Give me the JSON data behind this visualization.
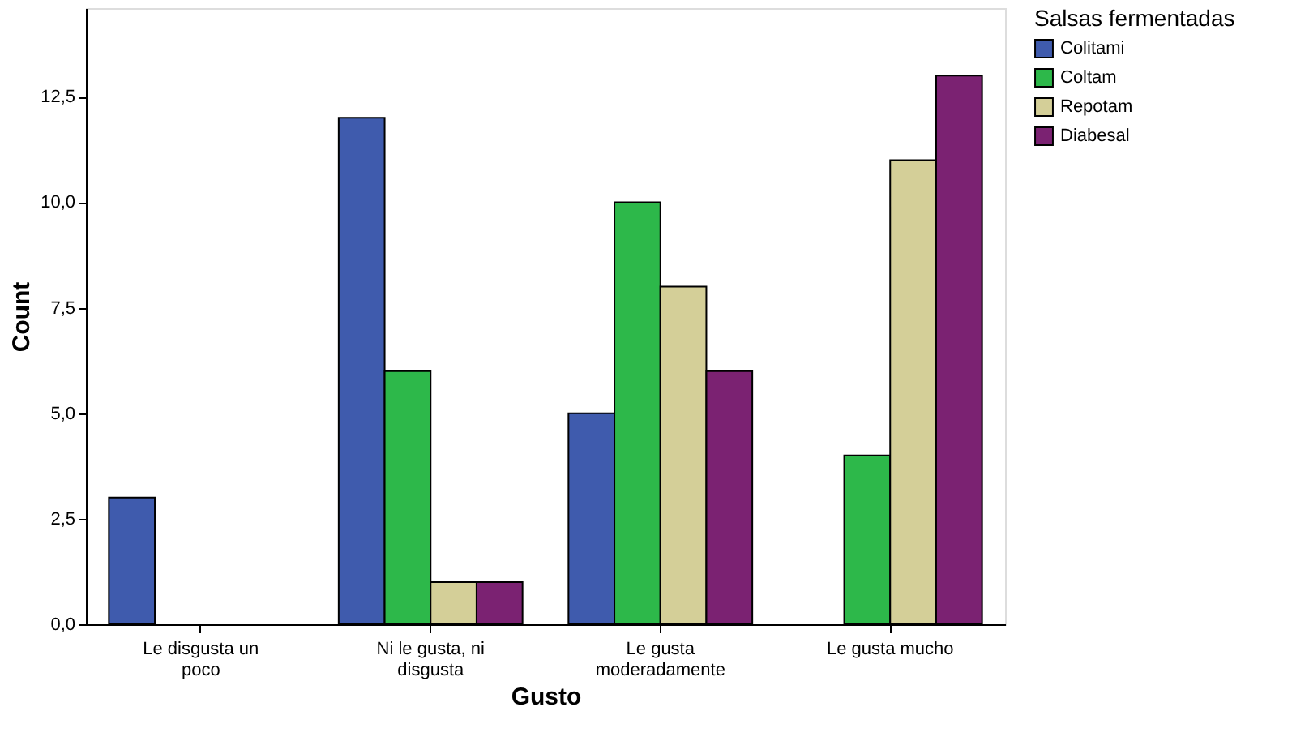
{
  "chart_data": {
    "type": "bar",
    "xlabel": "Gusto",
    "ylabel": "Count",
    "legend_title": "Salsas fermentadas",
    "legend": "top right",
    "categories": [
      "Le disgusta un poco",
      "Ni le gusta, ni disgusta",
      "Le gusta moderadamente",
      "Le gusta mucho"
    ],
    "series": [
      {
        "name": "Colitami",
        "color": "#3f5bad",
        "values": [
          3,
          12,
          5,
          null
        ]
      },
      {
        "name": "Coltam",
        "color": "#2db84a",
        "values": [
          null,
          6,
          10,
          4
        ]
      },
      {
        "name": "Repotam",
        "color": "#d4cf98",
        "values": [
          null,
          1,
          8,
          11
        ]
      },
      {
        "name": "Diabesal",
        "color": "#7b2272",
        "values": [
          null,
          1,
          6,
          13
        ]
      }
    ],
    "ylim": [
      0,
      14.6
    ],
    "yticks": [
      {
        "value": 0,
        "label": "0,0"
      },
      {
        "value": 2.5,
        "label": "2,5"
      },
      {
        "value": 5,
        "label": "5,0"
      },
      {
        "value": 7.5,
        "label": "7,5"
      },
      {
        "value": 10,
        "label": "10,0"
      },
      {
        "value": 12.5,
        "label": "12,5"
      }
    ],
    "grid": false
  }
}
